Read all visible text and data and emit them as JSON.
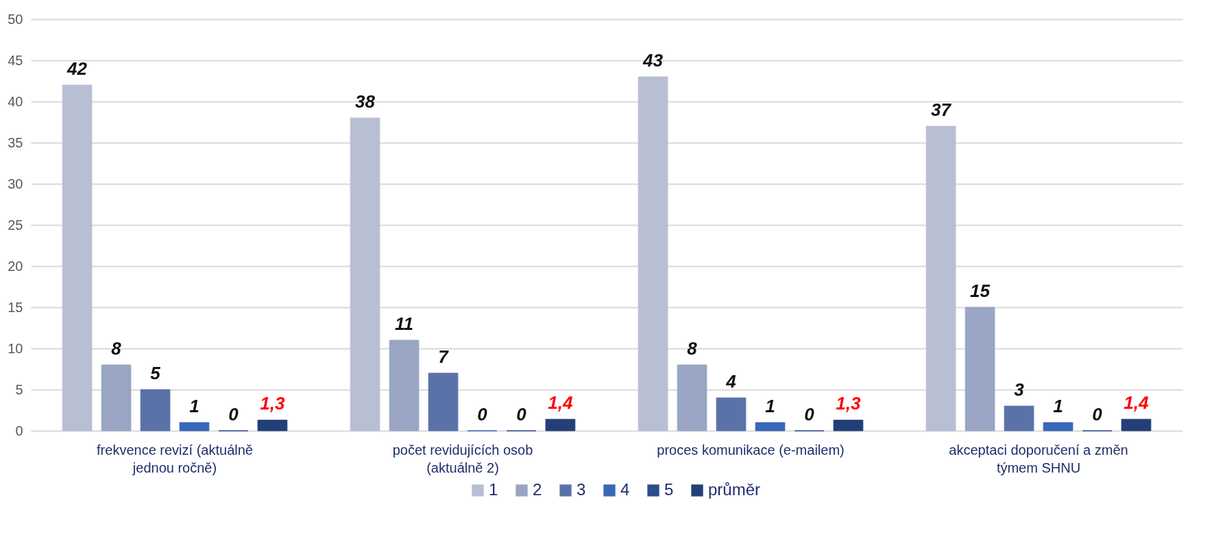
{
  "chart_data": {
    "type": "bar",
    "categories": [
      "frekvence revizí (aktuálně jednou ročně)",
      "počet revidujících osob (aktuálně 2)",
      "proces komunikace (e-mailem)",
      "akceptaci doporučení a změn týmem SHNU"
    ],
    "series": [
      {
        "name": "1",
        "color": "#b8bfd2",
        "values": [
          42,
          38,
          43,
          37
        ],
        "value_labels": [
          "42",
          "38",
          "43",
          "37"
        ]
      },
      {
        "name": "2",
        "color": "#9aa5c4",
        "values": [
          8,
          11,
          8,
          15
        ],
        "value_labels": [
          "8",
          "11",
          "8",
          "15"
        ]
      },
      {
        "name": "3",
        "color": "#5a72a8",
        "values": [
          5,
          7,
          4,
          3
        ],
        "value_labels": [
          "5",
          "7",
          "4",
          "3"
        ]
      },
      {
        "name": "4",
        "color": "#3a67b8",
        "values": [
          1,
          0,
          1,
          1
        ],
        "value_labels": [
          "1",
          "0",
          "1",
          "1"
        ]
      },
      {
        "name": "5",
        "color": "#2c4d8e",
        "values": [
          0,
          0,
          0,
          0
        ],
        "value_labels": [
          "0",
          "0",
          "0",
          "0"
        ]
      },
      {
        "name": "průměr",
        "color": "#243f78",
        "values": [
          1.3,
          1.4,
          1.3,
          1.4
        ],
        "value_labels": [
          "1,3",
          "1,4",
          "1,3",
          "1,4"
        ]
      }
    ],
    "ylim": [
      0,
      50
    ],
    "yticks": [
      0,
      5,
      10,
      15,
      20,
      25,
      30,
      35,
      40,
      45,
      50
    ],
    "grid": "y",
    "legend": "bottom"
  }
}
